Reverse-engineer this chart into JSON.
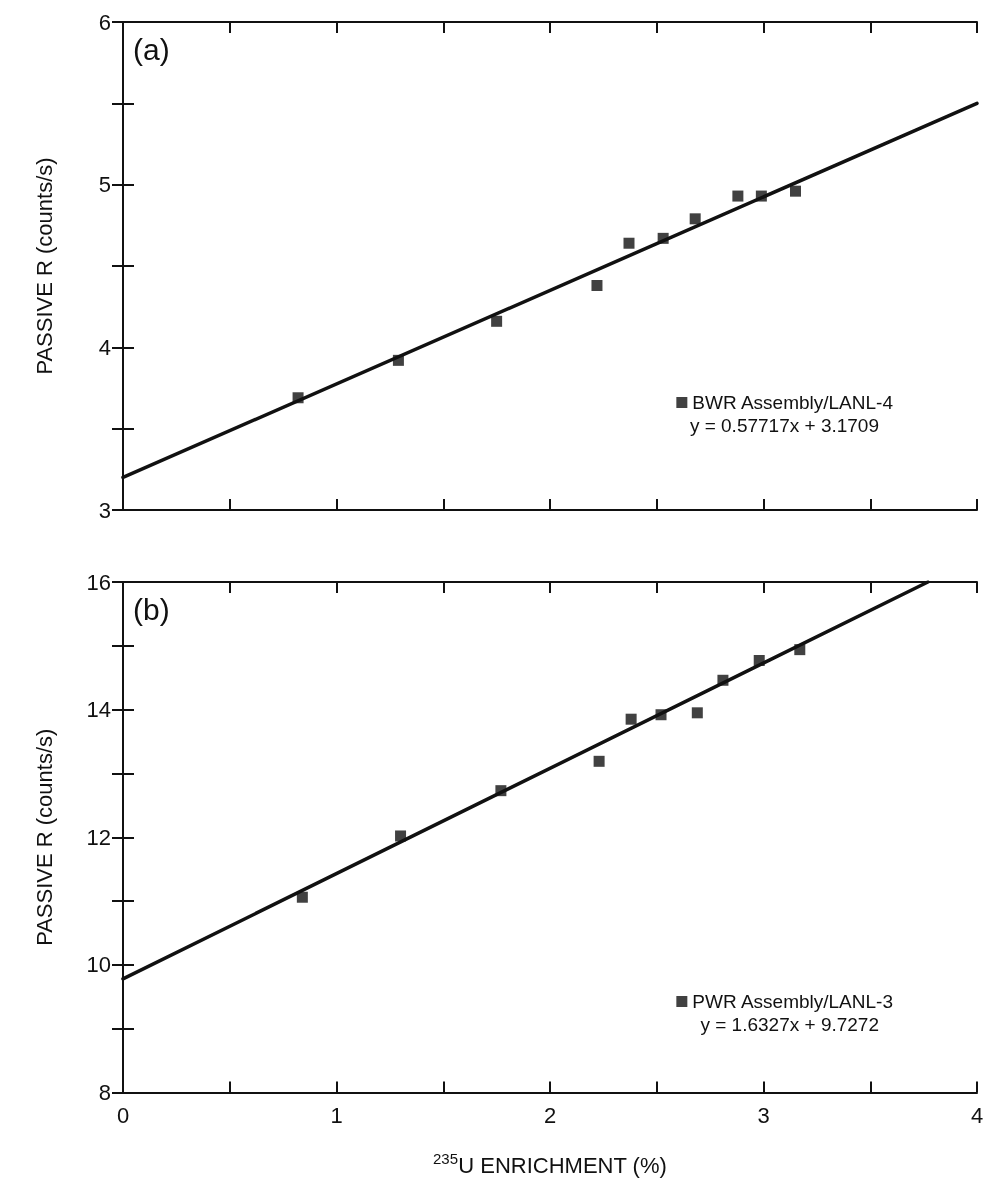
{
  "chart_data": [
    {
      "type": "scatter",
      "ylabel": "PASSIVE R (counts/s)",
      "annotations": [
        "(a)",
        "y = 0.57717x + 3.1709"
      ],
      "xlim": [
        0,
        4
      ],
      "xticks": [
        0,
        {
          "value": 0.5,
          "label": null
        },
        1,
        {
          "value": 1.5,
          "label": null
        },
        2,
        {
          "value": 2.5,
          "label": null
        },
        3,
        {
          "value": 3.5,
          "label": null
        },
        4
      ],
      "ylim": [
        3,
        6
      ],
      "yticks": [
        3,
        {
          "value": 3.5,
          "label": null
        },
        4,
        {
          "value": 4.5,
          "label": null
        },
        5,
        {
          "value": 5.5,
          "label": null
        },
        6
      ],
      "tick_labels": "y",
      "legend": "bottom right",
      "series": [
        {
          "name": "BWR Assembly/LANL-4",
          "color": "#111111",
          "marker": "square",
          "x": [
            0.82,
            1.29,
            1.75,
            2.22,
            2.37,
            2.53,
            2.68,
            2.88,
            2.99,
            3.15
          ],
          "values": [
            3.69,
            3.92,
            4.16,
            4.38,
            4.64,
            4.67,
            4.79,
            4.93,
            4.93,
            4.96
          ]
        },
        {
          "type": "line",
          "color": "#111111",
          "line_style": "solid",
          "marker": "none",
          "x": [
            0,
            4
          ],
          "values": [
            3.2,
            5.5
          ]
        }
      ]
    },
    {
      "type": "scatter",
      "xlabel": "$^{235}$U ENRICHMENT (%)",
      "ylabel": "PASSIVE R (counts/s)",
      "annotations": [
        "(b)",
        "y = 1.6327x + 9.7272"
      ],
      "xlim": [
        0,
        4
      ],
      "xticks": [
        0,
        {
          "value": 0.5,
          "label": null
        },
        1,
        {
          "value": 1.5,
          "label": null
        },
        2,
        {
          "value": 2.5,
          "label": null
        },
        3,
        {
          "value": 3.5,
          "label": null
        },
        4
      ],
      "ylim": [
        8,
        16
      ],
      "yticks": [
        8,
        {
          "value": 9,
          "label": null
        },
        10,
        {
          "value": 11,
          "label": null
        },
        12,
        {
          "value": 13,
          "label": null
        },
        14,
        {
          "value": 15,
          "label": null
        },
        16
      ],
      "legend": "bottom right",
      "series": [
        {
          "name": "PWR Assembly/LANL-3",
          "color": "#111111",
          "marker": "square",
          "x": [
            0.84,
            1.3,
            1.77,
            2.23,
            2.38,
            2.52,
            2.69,
            2.81,
            2.98,
            3.17
          ],
          "values": [
            11.06,
            12.02,
            12.73,
            13.19,
            13.85,
            13.92,
            13.95,
            14.46,
            14.77,
            14.94
          ]
        },
        {
          "type": "line",
          "color": "#111111",
          "line_style": "solid",
          "marker": "none",
          "x": [
            0,
            3.77
          ],
          "values": [
            9.78,
            16
          ]
        }
      ]
    }
  ]
}
